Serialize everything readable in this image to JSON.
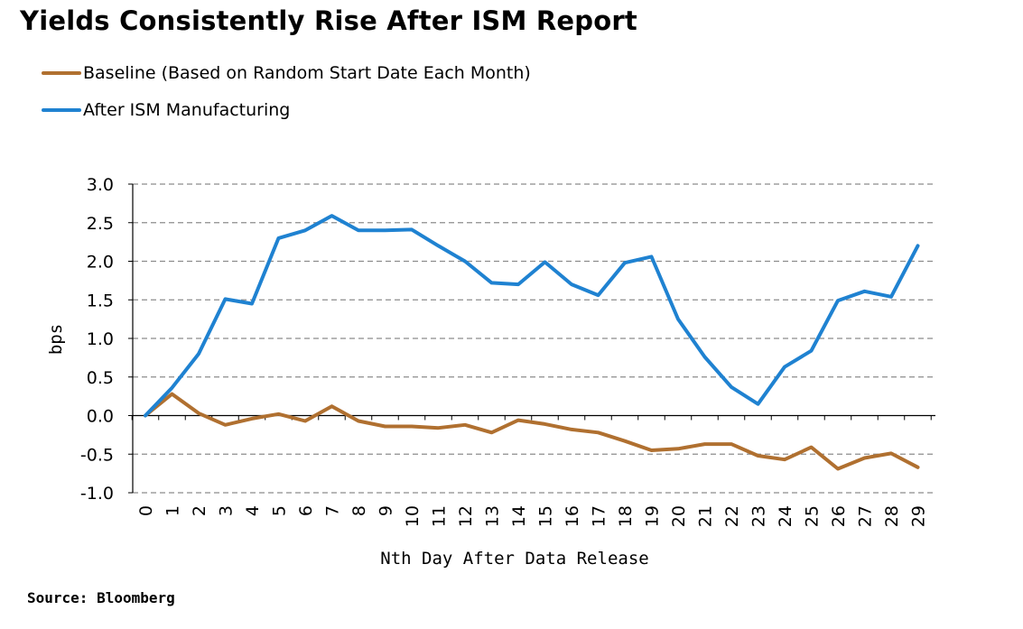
{
  "chart_data": {
    "type": "line",
    "title": "Yields Consistently Rise After ISM Report",
    "xlabel": "Nth Day After Data Release",
    "ylabel": "bps",
    "ylim": [
      -1.0,
      3.0
    ],
    "yticks": [
      "3.0",
      "2.5",
      "2.0",
      "1.5",
      "1.0",
      "0.5",
      "0.0",
      "-0.5",
      "-1.0"
    ],
    "x": [
      0,
      1,
      2,
      3,
      4,
      5,
      6,
      7,
      8,
      9,
      10,
      11,
      12,
      13,
      14,
      15,
      16,
      17,
      18,
      19,
      20,
      21,
      22,
      23,
      24,
      25,
      26,
      27,
      28,
      29
    ],
    "grid": true,
    "legend_position": "top-left",
    "series": [
      {
        "name": "Baseline (Based on Random Start Date Each Month)",
        "color": "#b07030",
        "values": [
          0.0,
          0.28,
          0.03,
          -0.12,
          -0.04,
          0.02,
          -0.07,
          0.12,
          -0.07,
          -0.14,
          -0.14,
          -0.16,
          -0.12,
          -0.22,
          -0.06,
          -0.11,
          -0.18,
          -0.22,
          -0.33,
          -0.45,
          -0.43,
          -0.37,
          -0.37,
          -0.52,
          -0.57,
          -0.41,
          -0.69,
          -0.55,
          -0.49,
          -0.67
        ]
      },
      {
        "name": "After ISM Manufacturing",
        "color": "#1f82d1",
        "values": [
          0.0,
          0.36,
          0.8,
          1.51,
          1.45,
          2.3,
          2.4,
          2.59,
          2.4,
          2.4,
          2.41,
          2.2,
          2.0,
          1.72,
          1.7,
          1.99,
          1.7,
          1.56,
          1.98,
          2.06,
          1.25,
          0.76,
          0.37,
          0.15,
          0.63,
          0.84,
          1.49,
          1.61,
          1.54,
          2.2
        ]
      }
    ]
  },
  "source": "Source: Bloomberg"
}
